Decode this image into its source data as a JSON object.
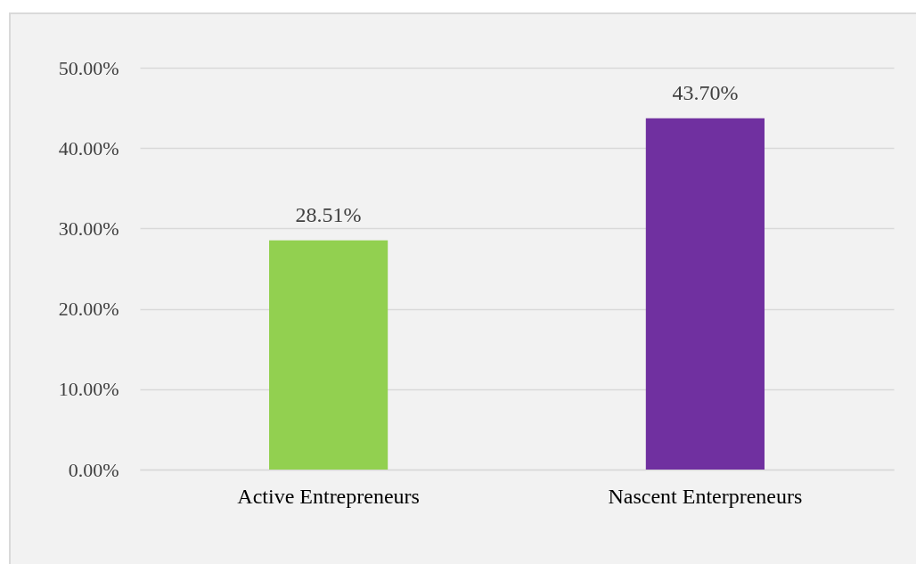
{
  "chart_data": {
    "type": "bar",
    "categories": [
      "Active Entrepreneurs",
      "Nascent Enterpreneurs"
    ],
    "values": [
      28.51,
      43.7
    ],
    "colors": [
      "#92d050",
      "#7030a0"
    ],
    "value_labels": [
      "28.51%",
      "43.70%"
    ],
    "ylim": [
      0,
      50
    ],
    "yticks": [
      {
        "value": 0,
        "label": "0.00%"
      },
      {
        "value": 10,
        "label": "10.00%"
      },
      {
        "value": 20,
        "label": "20.00%"
      },
      {
        "value": 30,
        "label": "30.00%"
      },
      {
        "value": 40,
        "label": "40.00%"
      },
      {
        "value": 50,
        "label": "50.00%"
      }
    ],
    "grid": "y"
  }
}
